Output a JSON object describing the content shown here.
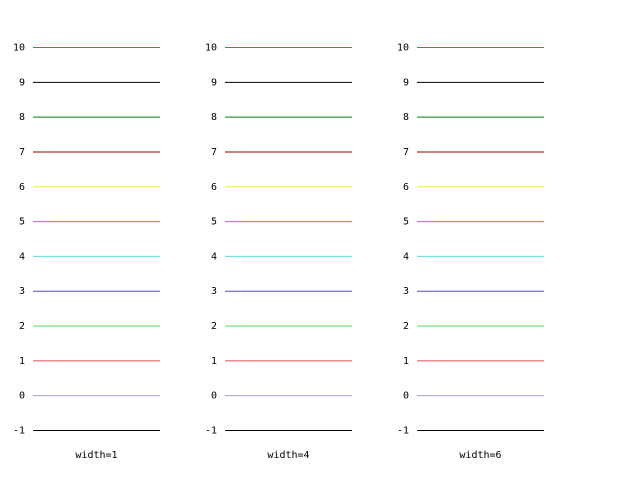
{
  "chart_data": [
    {
      "type": "hline",
      "xlabel": "width=1",
      "values": [
        -1,
        0,
        1,
        2,
        3,
        4,
        5,
        6,
        7,
        8,
        9,
        10
      ],
      "colors": [
        "#000000",
        "#a8a0e0",
        "#e05050",
        "#50e050",
        "#5050c0",
        "#60e0e0",
        "#d050f0",
        "#f0f040",
        "#900000",
        "#008000",
        "#000000",
        "#e04040"
      ],
      "ylim": [
        -1,
        10
      ],
      "yticks": [
        -1,
        0,
        1,
        2,
        3,
        4,
        5,
        6,
        7,
        8,
        9,
        10
      ]
    },
    {
      "type": "hline",
      "xlabel": "width=4",
      "values": [
        -1,
        0,
        1,
        2,
        3,
        4,
        5,
        6,
        7,
        8,
        9,
        10
      ],
      "colors": [
        "#000000",
        "#a8a0e0",
        "#e05050",
        "#50e050",
        "#5050c0",
        "#60e0e0",
        "#d050f0",
        "#f0f040",
        "#900000",
        "#008000",
        "#000000",
        "#e04040"
      ],
      "ylim": [
        -1,
        10
      ],
      "yticks": [
        -1,
        0,
        1,
        2,
        3,
        4,
        5,
        6,
        7,
        8,
        9,
        10
      ]
    },
    {
      "type": "hline",
      "xlabel": "width=6",
      "values": [
        -1,
        0,
        1,
        2,
        3,
        4,
        5,
        6,
        7,
        8,
        9,
        10
      ],
      "colors": [
        "#000000",
        "#a8a0e0",
        "#e05050",
        "#50e050",
        "#5050c0",
        "#60e0e0",
        "#d050f0",
        "#f0f040",
        "#900000",
        "#008000",
        "#000000",
        "#e04040"
      ],
      "ylim": [
        -1,
        10
      ],
      "yticks": [
        -1,
        0,
        1,
        2,
        3,
        4,
        5,
        6,
        7,
        8,
        9,
        10
      ]
    }
  ]
}
